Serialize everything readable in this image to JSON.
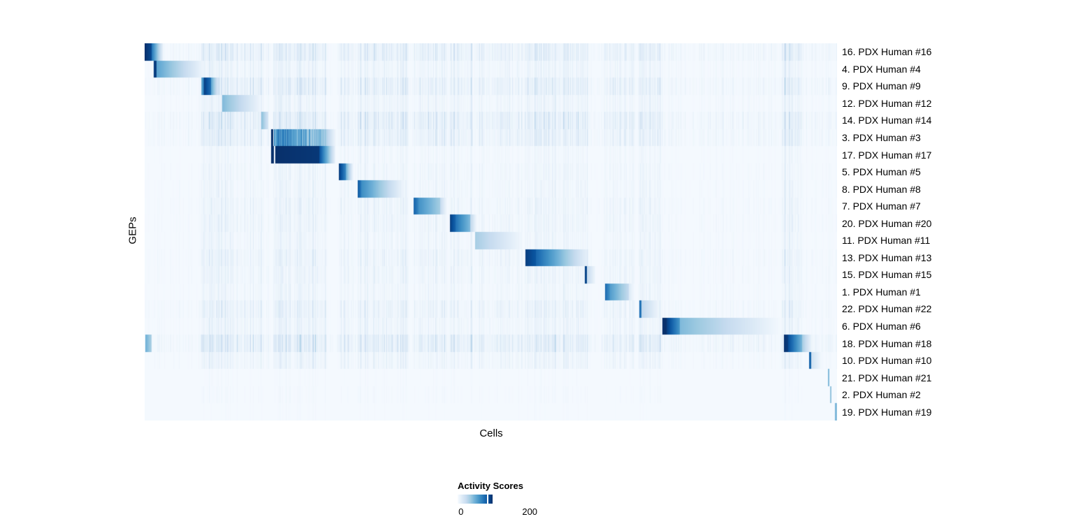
{
  "chart_data": {
    "type": "heatmap",
    "title": "",
    "xlabel": "Cells",
    "ylabel": "GEPs",
    "n_rows": 22,
    "value_range": [
      0,
      233
    ],
    "legend": {
      "title": "Activity Scores",
      "ticks": [
        {
          "label": "0",
          "value": 0,
          "pos": 0.04
        },
        {
          "label": "200",
          "value": 200,
          "pos": 0.86
        }
      ]
    },
    "colormap": {
      "stops": [
        "#f7fbff",
        "#deebf7",
        "#c6dbef",
        "#9ecae1",
        "#6baed6",
        "#4292c6",
        "#2171b5",
        "#08519c",
        "#08306b"
      ],
      "background_value": 0.015
    },
    "rows": [
      {
        "label": "16. PDX Human #16",
        "texture": 0.55,
        "segments": [
          [
            0.0,
            0.01,
            1.0,
            0.9,
            "b"
          ],
          [
            0.01,
            0.027,
            0.75,
            0.05,
            "b"
          ]
        ]
      },
      {
        "label": "4. PDX Human #4",
        "texture": 0.3,
        "segments": [
          [
            0.013,
            0.017,
            0.95,
            0.95,
            "b"
          ],
          [
            0.017,
            0.084,
            0.55,
            0.05,
            "b"
          ]
        ]
      },
      {
        "label": "9. PDX Human #9",
        "texture": 0.55,
        "segments": [
          [
            0.082,
            0.086,
            0.45,
            0.8,
            "b"
          ],
          [
            0.086,
            0.096,
            0.95,
            0.75,
            "b"
          ],
          [
            0.096,
            0.108,
            0.55,
            0.06,
            "b"
          ]
        ]
      },
      {
        "label": "12. PDX Human #12",
        "texture": 0.3,
        "segments": [
          [
            0.112,
            0.168,
            0.45,
            0.04,
            "b"
          ]
        ]
      },
      {
        "label": "14. PDX Human #14",
        "texture": 0.6,
        "segments": [
          [
            0.169,
            0.179,
            0.42,
            0.16,
            "b"
          ]
        ]
      },
      {
        "label": "3. PDX Human #3",
        "texture": 0.5,
        "segments": [
          [
            0.183,
            0.186,
            1.0,
            1.0,
            "b"
          ],
          [
            0.187,
            0.263,
            0.85,
            0.55,
            "s"
          ],
          [
            0.263,
            0.276,
            0.3,
            0.04,
            "b"
          ]
        ]
      },
      {
        "label": "17. PDX Human #17",
        "texture": 0.2,
        "segments": [
          [
            0.183,
            0.187,
            1.0,
            1.0,
            "b"
          ],
          [
            0.189,
            0.252,
            1.0,
            0.97,
            "b"
          ],
          [
            0.252,
            0.275,
            0.9,
            0.08,
            "b"
          ]
        ]
      },
      {
        "label": "5. PDX Human #5",
        "texture": 0.25,
        "segments": [
          [
            0.281,
            0.291,
            0.95,
            0.65,
            "b"
          ],
          [
            0.291,
            0.301,
            0.5,
            0.05,
            "b"
          ]
        ]
      },
      {
        "label": "8. PDX Human #8",
        "texture": 0.25,
        "segments": [
          [
            0.308,
            0.313,
            0.85,
            0.7,
            "b"
          ],
          [
            0.313,
            0.374,
            0.65,
            0.04,
            "b"
          ]
        ]
      },
      {
        "label": "7. PDX Human #7",
        "texture": 0.3,
        "segments": [
          [
            0.389,
            0.396,
            0.8,
            0.65,
            "b"
          ],
          [
            0.396,
            0.427,
            0.62,
            0.35,
            "b"
          ],
          [
            0.427,
            0.436,
            0.25,
            0.04,
            "b"
          ]
        ]
      },
      {
        "label": "20. PDX Human #20",
        "texture": 0.3,
        "segments": [
          [
            0.441,
            0.449,
            0.95,
            0.8,
            "b"
          ],
          [
            0.449,
            0.47,
            0.75,
            0.45,
            "b"
          ],
          [
            0.47,
            0.479,
            0.3,
            0.04,
            "b"
          ]
        ]
      },
      {
        "label": "11. PDX Human #11",
        "texture": 0.25,
        "segments": [
          [
            0.477,
            0.545,
            0.35,
            0.03,
            "b"
          ]
        ]
      },
      {
        "label": "13. PDX Human #13",
        "texture": 0.35,
        "segments": [
          [
            0.55,
            0.565,
            0.95,
            0.85,
            "b"
          ],
          [
            0.565,
            0.641,
            0.8,
            0.06,
            "b"
          ]
        ]
      },
      {
        "label": "15. PDX Human #15",
        "texture": 0.3,
        "segments": [
          [
            0.636,
            0.639,
            0.92,
            0.92,
            "b"
          ],
          [
            0.639,
            0.651,
            0.25,
            0.04,
            "b"
          ]
        ]
      },
      {
        "label": "1. PDX Human #1",
        "texture": 0.25,
        "segments": [
          [
            0.665,
            0.672,
            0.78,
            0.62,
            "b"
          ],
          [
            0.672,
            0.699,
            0.58,
            0.25,
            "b"
          ],
          [
            0.699,
            0.706,
            0.15,
            0.03,
            "b"
          ]
        ]
      },
      {
        "label": "22. PDX Human #22",
        "texture": 0.4,
        "segments": [
          [
            0.714,
            0.717,
            0.75,
            0.75,
            "b"
          ],
          [
            0.717,
            0.742,
            0.28,
            0.05,
            "b"
          ]
        ]
      },
      {
        "label": "6. PDX Human #6",
        "texture": 0.3,
        "segments": [
          [
            0.748,
            0.754,
            1.0,
            1.0,
            "b"
          ],
          [
            0.754,
            0.773,
            0.95,
            0.6,
            "b"
          ],
          [
            0.773,
            0.918,
            0.45,
            0.02,
            "b"
          ]
        ]
      },
      {
        "label": "18. PDX Human #18",
        "texture": 0.65,
        "segments": [
          [
            0.001,
            0.01,
            0.5,
            0.33,
            "b"
          ],
          [
            0.923,
            0.929,
            1.0,
            0.95,
            "b"
          ],
          [
            0.929,
            0.95,
            0.9,
            0.45,
            "b"
          ],
          [
            0.95,
            0.964,
            0.35,
            0.04,
            "b"
          ]
        ]
      },
      {
        "label": "10. PDX Human #10",
        "texture": 0.3,
        "segments": [
          [
            0.96,
            0.963,
            0.8,
            0.8,
            "b"
          ],
          [
            0.963,
            0.977,
            0.2,
            0.03,
            "b"
          ]
        ]
      },
      {
        "label": "21. PDX Human #21",
        "texture": 0.08,
        "segments": [
          [
            0.987,
            0.989,
            0.45,
            0.45,
            "b"
          ]
        ]
      },
      {
        "label": "2. PDX Human #2",
        "texture": 0.1,
        "segments": [
          [
            0.99,
            0.992,
            0.4,
            0.4,
            "b"
          ]
        ]
      },
      {
        "label": "19. PDX Human #19",
        "texture": 0.06,
        "segments": [
          [
            0.997,
            1.0,
            0.5,
            0.38,
            "b"
          ]
        ]
      }
    ],
    "stripe_bands": [
      [
        0.0,
        0.081,
        0.1
      ],
      [
        0.081,
        0.112,
        0.45
      ],
      [
        0.112,
        0.17,
        0.35
      ],
      [
        0.17,
        0.183,
        0.15
      ],
      [
        0.186,
        0.263,
        0.4
      ],
      [
        0.263,
        0.28,
        0.1
      ],
      [
        0.28,
        0.302,
        0.3
      ],
      [
        0.302,
        0.308,
        0.12
      ],
      [
        0.308,
        0.38,
        0.35
      ],
      [
        0.38,
        0.388,
        0.1
      ],
      [
        0.388,
        0.437,
        0.3
      ],
      [
        0.437,
        0.441,
        0.1
      ],
      [
        0.441,
        0.474,
        0.35
      ],
      [
        0.474,
        0.477,
        0.1
      ],
      [
        0.477,
        0.55,
        0.25
      ],
      [
        0.55,
        0.642,
        0.35
      ],
      [
        0.642,
        0.663,
        0.1
      ],
      [
        0.663,
        0.706,
        0.25
      ],
      [
        0.706,
        0.713,
        0.1
      ],
      [
        0.713,
        0.746,
        0.35
      ],
      [
        0.746,
        0.92,
        0.13
      ],
      [
        0.92,
        0.95,
        0.5
      ],
      [
        0.95,
        1.0,
        0.12
      ]
    ]
  }
}
